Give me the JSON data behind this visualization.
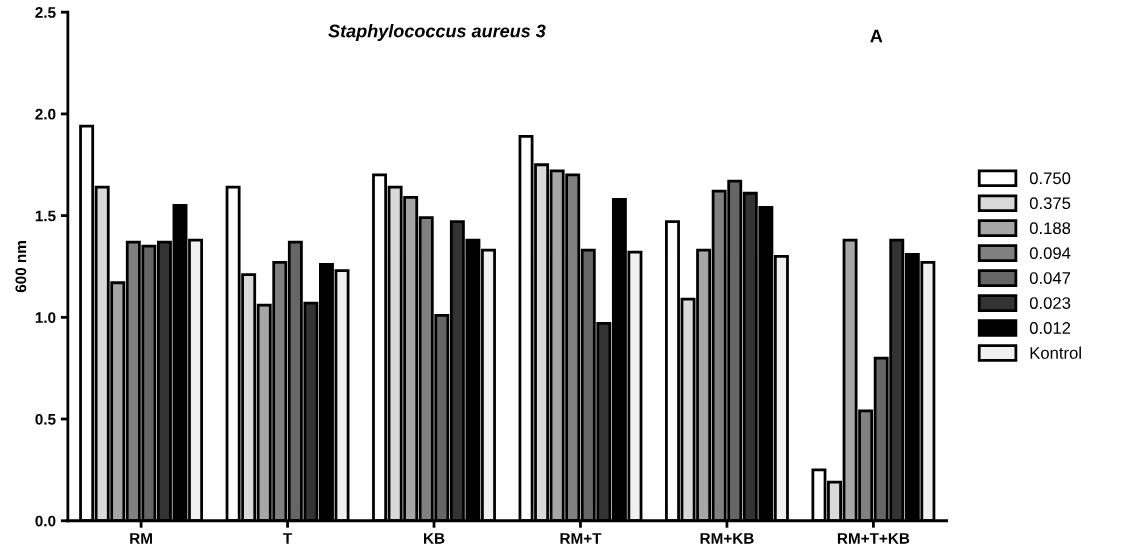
{
  "chart_data": {
    "type": "bar",
    "title": "Staphylococcus aureus 3",
    "ylabel": "600 nm",
    "annotations": [
      "A"
    ],
    "categories": [
      "RM",
      "T",
      "KB",
      "RM+T",
      "RM+KB",
      "RM+T+KB"
    ],
    "series": [
      {
        "name": "0.750",
        "color": "#ffffff",
        "values": [
          1.94,
          1.64,
          1.7,
          1.89,
          1.47,
          0.25
        ]
      },
      {
        "name": "0.375",
        "color": "#d9d9d9",
        "values": [
          1.64,
          1.21,
          1.64,
          1.75,
          1.09,
          0.19
        ]
      },
      {
        "name": "0.188",
        "color": "#a6a6a6",
        "values": [
          1.17,
          1.06,
          1.59,
          1.72,
          1.33,
          1.38
        ]
      },
      {
        "name": "0.094",
        "color": "#808080",
        "values": [
          1.37,
          1.27,
          1.49,
          1.7,
          1.62,
          0.54
        ]
      },
      {
        "name": "0.047",
        "color": "#666666",
        "values": [
          1.35,
          1.37,
          1.01,
          1.33,
          1.67,
          0.8
        ]
      },
      {
        "name": "0.023",
        "color": "#333333",
        "values": [
          1.37,
          1.07,
          1.47,
          0.97,
          1.61,
          1.38
        ]
      },
      {
        "name": "0.012",
        "color": "#000000",
        "values": [
          1.55,
          1.26,
          1.38,
          1.58,
          1.54,
          1.31
        ]
      },
      {
        "name": "Kontrol",
        "color": "#f0f0f0",
        "values": [
          1.38,
          1.23,
          1.33,
          1.32,
          1.3,
          1.27
        ]
      }
    ],
    "ylim": [
      0,
      2.5
    ],
    "yticks": [
      {
        "value": 0,
        "label": "0.0"
      },
      {
        "value": 0.5,
        "label": "0.5"
      },
      {
        "value": 1,
        "label": "1.0"
      },
      {
        "value": 1.5,
        "label": "1.5"
      },
      {
        "value": 2,
        "label": "2.0"
      },
      {
        "value": 2.5,
        "label": "2.5"
      }
    ],
    "grid": false,
    "legend": "right"
  }
}
